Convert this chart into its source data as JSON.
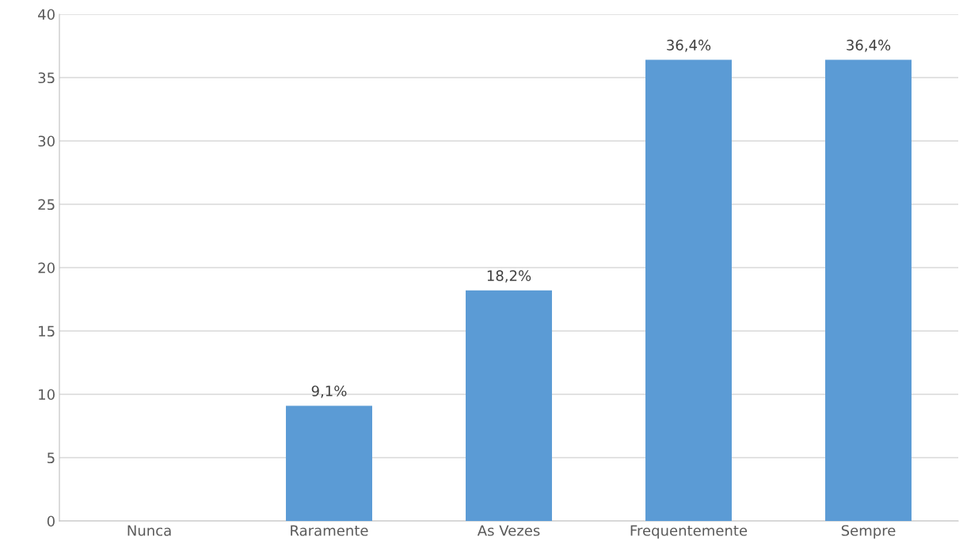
{
  "chart_data": {
    "type": "bar",
    "categories": [
      "Nunca",
      "Raramente",
      "As Vezes",
      "Frequentemente",
      "Sempre"
    ],
    "values": [
      0,
      9.1,
      18.2,
      36.4,
      36.4
    ],
    "value_labels": [
      null,
      "9,1%",
      "18,2%",
      "36,4%",
      "36,4%"
    ],
    "color": "#5b9bd5",
    "ylim": [
      0,
      40
    ],
    "yticks": [
      0,
      5,
      10,
      15,
      20,
      25,
      30,
      35,
      40
    ],
    "grid": "y"
  }
}
